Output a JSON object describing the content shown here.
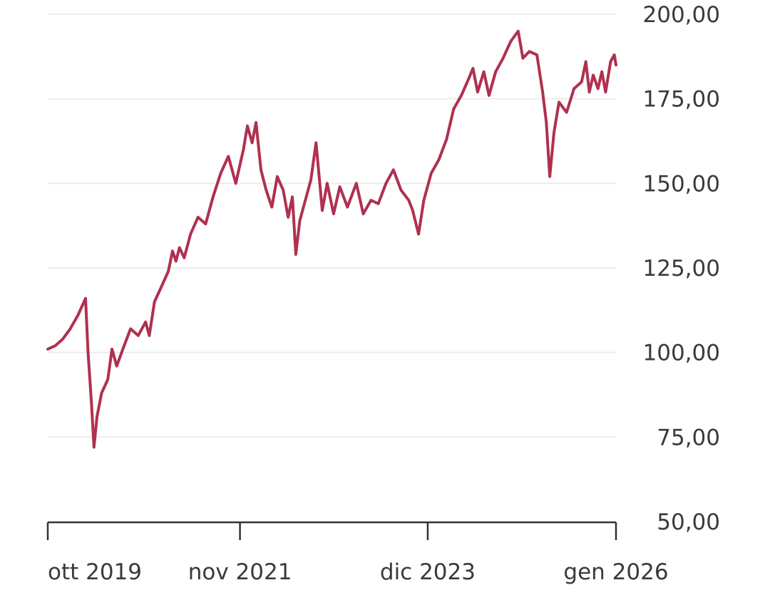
{
  "chart_data": {
    "type": "line",
    "title": "",
    "xlabel": "",
    "ylabel": "",
    "grid": true,
    "color": "#b0304f",
    "ylim": [
      50,
      200
    ],
    "xlim": [
      "2019-09-15",
      "2026-01-01"
    ],
    "y_ticks": [
      {
        "value": 200,
        "label": "200,00"
      },
      {
        "value": 175,
        "label": "175,00"
      },
      {
        "value": 150,
        "label": "150,00"
      },
      {
        "value": 125,
        "label": "125,00"
      },
      {
        "value": 100,
        "label": "100,00"
      },
      {
        "value": 75,
        "label": "75,00"
      },
      {
        "value": 50,
        "label": "50,00"
      }
    ],
    "x_ticks": [
      {
        "date": "2019-09-15",
        "label": "ott 2019"
      },
      {
        "date": "2021-11-01",
        "label": "nov 2021"
      },
      {
        "date": "2023-12-01",
        "label": "dic 2023"
      },
      {
        "date": "2026-01-01",
        "label": "gen 2026"
      }
    ],
    "series": [
      {
        "points": [
          [
            "2019-09-15",
            101
          ],
          [
            "2019-10-15",
            102
          ],
          [
            "2019-11-15",
            104
          ],
          [
            "2019-12-15",
            107
          ],
          [
            "2020-01-15",
            111
          ],
          [
            "2020-02-15",
            116
          ],
          [
            "2020-02-25",
            100
          ],
          [
            "2020-03-10",
            85
          ],
          [
            "2020-03-20",
            72
          ],
          [
            "2020-04-01",
            81
          ],
          [
            "2020-04-20",
            88
          ],
          [
            "2020-05-15",
            92
          ],
          [
            "2020-06-01",
            101
          ],
          [
            "2020-06-20",
            96
          ],
          [
            "2020-07-15",
            101
          ],
          [
            "2020-08-15",
            107
          ],
          [
            "2020-09-15",
            105
          ],
          [
            "2020-10-15",
            109
          ],
          [
            "2020-10-30",
            105
          ],
          [
            "2020-11-20",
            115
          ],
          [
            "2020-12-15",
            119
          ],
          [
            "2021-01-15",
            124
          ],
          [
            "2021-02-01",
            130
          ],
          [
            "2021-02-15",
            127
          ],
          [
            "2021-03-01",
            131
          ],
          [
            "2021-03-20",
            128
          ],
          [
            "2021-04-15",
            135
          ],
          [
            "2021-05-15",
            140
          ],
          [
            "2021-06-15",
            138
          ],
          [
            "2021-07-15",
            146
          ],
          [
            "2021-08-15",
            153
          ],
          [
            "2021-09-15",
            158
          ],
          [
            "2021-10-15",
            150
          ],
          [
            "2021-11-15",
            160
          ],
          [
            "2021-12-01",
            167
          ],
          [
            "2021-12-20",
            162
          ],
          [
            "2022-01-05",
            168
          ],
          [
            "2022-01-25",
            154
          ],
          [
            "2022-02-15",
            148
          ],
          [
            "2022-03-10",
            143
          ],
          [
            "2022-04-01",
            152
          ],
          [
            "2022-04-25",
            148
          ],
          [
            "2022-05-15",
            140
          ],
          [
            "2022-06-01",
            146
          ],
          [
            "2022-06-15",
            129
          ],
          [
            "2022-07-01",
            139
          ],
          [
            "2022-08-15",
            151
          ],
          [
            "2022-09-05",
            162
          ],
          [
            "2022-09-30",
            142
          ],
          [
            "2022-10-20",
            150
          ],
          [
            "2022-11-15",
            141
          ],
          [
            "2022-12-10",
            149
          ],
          [
            "2023-01-10",
            143
          ],
          [
            "2023-02-15",
            150
          ],
          [
            "2023-03-15",
            141
          ],
          [
            "2023-04-15",
            145
          ],
          [
            "2023-05-15",
            144
          ],
          [
            "2023-06-15",
            150
          ],
          [
            "2023-07-15",
            154
          ],
          [
            "2023-08-15",
            148
          ],
          [
            "2023-09-15",
            145
          ],
          [
            "2023-10-01",
            142
          ],
          [
            "2023-10-25",
            135
          ],
          [
            "2023-11-15",
            145
          ],
          [
            "2023-12-15",
            153
          ],
          [
            "2024-01-15",
            157
          ],
          [
            "2024-02-15",
            163
          ],
          [
            "2024-03-15",
            172
          ],
          [
            "2024-04-15",
            176
          ],
          [
            "2024-05-15",
            181
          ],
          [
            "2024-06-01",
            184
          ],
          [
            "2024-06-20",
            177
          ],
          [
            "2024-07-15",
            183
          ],
          [
            "2024-08-05",
            176
          ],
          [
            "2024-09-01",
            183
          ],
          [
            "2024-10-01",
            187
          ],
          [
            "2024-11-01",
            192
          ],
          [
            "2024-12-01",
            195
          ],
          [
            "2024-12-20",
            187
          ],
          [
            "2025-01-15",
            189
          ],
          [
            "2025-02-15",
            188
          ],
          [
            "2025-03-10",
            177
          ],
          [
            "2025-03-25",
            168
          ],
          [
            "2025-04-08",
            152
          ],
          [
            "2025-04-25",
            165
          ],
          [
            "2025-05-15",
            174
          ],
          [
            "2025-06-15",
            171
          ],
          [
            "2025-07-15",
            178
          ],
          [
            "2025-08-15",
            180
          ],
          [
            "2025-09-01",
            186
          ],
          [
            "2025-09-15",
            177
          ],
          [
            "2025-10-01",
            182
          ],
          [
            "2025-10-20",
            178
          ],
          [
            "2025-11-05",
            183
          ],
          [
            "2025-11-20",
            177
          ],
          [
            "2025-12-10",
            186
          ],
          [
            "2025-12-25",
            188
          ],
          [
            "2026-01-01",
            185
          ]
        ]
      }
    ]
  }
}
